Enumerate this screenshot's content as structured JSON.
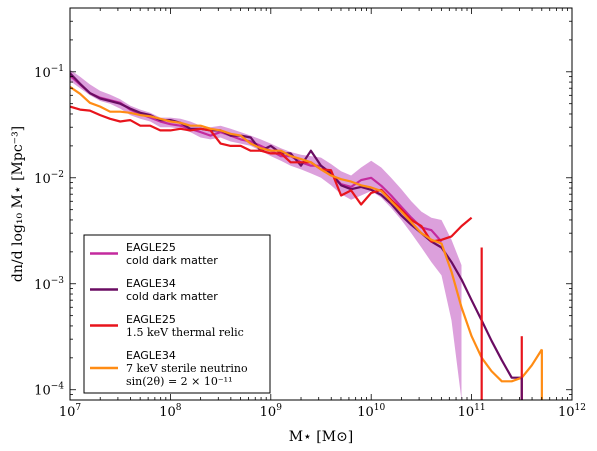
{
  "chart_data": {
    "type": "line",
    "xlabel": "M⋆ [M⊙]",
    "ylabel": "dn/d log₁₀ M⋆ [Mpc⁻³]",
    "xscale": "log",
    "yscale": "log",
    "xlim": [
      10000000.0,
      1000000000000.0
    ],
    "ylim": [
      8e-05,
      0.4
    ],
    "x_ticks": [
      {
        "value": 10000000.0,
        "base": "10",
        "exp": "7"
      },
      {
        "value": 100000000.0,
        "base": "10",
        "exp": "8"
      },
      {
        "value": 1000000000.0,
        "base": "10",
        "exp": "9"
      },
      {
        "value": 10000000000.0,
        "base": "10",
        "exp": "10"
      },
      {
        "value": 100000000000.0,
        "base": "10",
        "exp": "11"
      },
      {
        "value": 1000000000000.0,
        "base": "10",
        "exp": "12"
      }
    ],
    "y_ticks": [
      {
        "value": 0.0001,
        "base": "10",
        "exp": "−4"
      },
      {
        "value": 0.001,
        "base": "10",
        "exp": "−3"
      },
      {
        "value": 0.01,
        "base": "10",
        "exp": "−2"
      },
      {
        "value": 0.1,
        "base": "10",
        "exp": "−1"
      }
    ],
    "grid": false,
    "legend_position": "bottom-left",
    "band": {
      "series": "EAGLE25 cold dark matter",
      "color": "#dca0dc",
      "x": [
        10000000.0,
        12600000.0,
        15800000.0,
        20000000.0,
        25100000.0,
        31600000.0,
        39800000.0,
        50100000.0,
        63100000.0,
        79400000.0,
        100000000.0,
        126000000.0,
        158000000.0,
        200000000.0,
        251000000.0,
        316000000.0,
        398000000.0,
        501000000.0,
        631000000.0,
        794000000.0,
        1000000000.0,
        1260000000.0,
        1580000000.0,
        2000000000.0,
        2510000000.0,
        3160000000.0,
        3980000000.0,
        5010000000.0,
        6310000000.0,
        7940000000.0,
        10000000000.0,
        12600000000.0,
        15800000000.0,
        20000000000.0,
        25100000000.0,
        31600000000.0,
        39800000000.0,
        50100000000.0,
        63100000000.0,
        79400000000.0
      ],
      "low": [
        0.082,
        0.07,
        0.06,
        0.053,
        0.05,
        0.045,
        0.039,
        0.036,
        0.034,
        0.03,
        0.03,
        0.029,
        0.027,
        0.024,
        0.023,
        0.024,
        0.022,
        0.021,
        0.02,
        0.018,
        0.016,
        0.0145,
        0.013,
        0.012,
        0.011,
        0.01,
        0.0085,
        0.007,
        0.0062,
        0.0068,
        0.0075,
        0.0065,
        0.0052,
        0.004,
        0.003,
        0.0022,
        0.0016,
        0.0012,
        0.00045,
        8e-05
      ],
      "high": [
        0.105,
        0.09,
        0.076,
        0.066,
        0.061,
        0.055,
        0.048,
        0.044,
        0.041,
        0.037,
        0.037,
        0.036,
        0.034,
        0.031,
        0.03,
        0.031,
        0.029,
        0.027,
        0.025,
        0.023,
        0.021,
        0.019,
        0.0175,
        0.0165,
        0.016,
        0.0155,
        0.0135,
        0.0115,
        0.0105,
        0.0125,
        0.0145,
        0.0125,
        0.01,
        0.0078,
        0.006,
        0.0048,
        0.0042,
        0.004,
        0.0026,
        0.0015
      ]
    },
    "series": [
      {
        "color": "#c42a9e",
        "width": 2.2,
        "x": [
          10000000.0,
          15800000.0,
          20000000.0,
          31600000.0,
          39800000.0,
          50100000.0,
          63100000.0,
          79400000.0,
          100000000.0,
          126000000.0,
          158000000.0,
          200000000.0,
          251000000.0,
          316000000.0,
          398000000.0,
          501000000.0,
          631000000.0,
          794000000.0,
          1000000000.0,
          1260000000.0,
          1580000000.0,
          2000000000.0,
          2510000000.0,
          3160000000.0,
          3980000000.0,
          5010000000.0,
          6310000000.0,
          7940000000.0,
          10000000000.0,
          12600000000.0,
          15800000000.0,
          20000000000.0,
          25100000000.0,
          31600000000.0,
          39800000000.0,
          50100000000.0
        ],
        "y": [
          0.092,
          0.063,
          0.057,
          0.051,
          0.044,
          0.04,
          0.037,
          0.034,
          0.032,
          0.031,
          0.029,
          0.027,
          0.025,
          0.027,
          0.025,
          0.023,
          0.022,
          0.02,
          0.018,
          0.016,
          0.016,
          0.014,
          0.013,
          0.013,
          0.011,
          0.0087,
          0.0082,
          0.0095,
          0.01,
          0.0084,
          0.0068,
          0.0053,
          0.0042,
          0.0034,
          0.0032,
          0.0025
        ]
      },
      {
        "color": "#6a0c62",
        "width": 2.2,
        "x": [
          10000000.0,
          12600000.0,
          15800000.0,
          20000000.0,
          25100000.0,
          31600000.0,
          39800000.0,
          50100000.0,
          63100000.0,
          79400000.0,
          100000000.0,
          126000000.0,
          158000000.0,
          200000000.0,
          251000000.0,
          316000000.0,
          398000000.0,
          501000000.0,
          631000000.0,
          794000000.0,
          1000000000.0,
          1260000000.0,
          1580000000.0,
          2000000000.0,
          2510000000.0,
          3160000000.0,
          3980000000.0,
          5010000000.0,
          6310000000.0,
          7940000000.0,
          10000000000.0,
          12600000000.0,
          15800000000.0,
          20000000000.0,
          25100000000.0,
          31600000000.0,
          39800000000.0,
          50100000000.0,
          63100000000.0,
          79400000000.0,
          100000000000.0,
          126000000000.0,
          158000000000.0,
          200000000000.0,
          251000000000.0,
          316000000000.0
        ],
        "y": [
          0.097,
          0.077,
          0.063,
          0.056,
          0.053,
          0.05,
          0.045,
          0.041,
          0.039,
          0.035,
          0.035,
          0.033,
          0.029,
          0.029,
          0.028,
          0.028,
          0.025,
          0.025,
          0.024,
          0.018,
          0.02,
          0.017,
          0.017,
          0.013,
          0.018,
          0.013,
          0.011,
          0.0085,
          0.0078,
          0.0082,
          0.0077,
          0.0069,
          0.0057,
          0.0044,
          0.0036,
          0.003,
          0.0025,
          0.0022,
          0.0016,
          0.0011,
          0.0007,
          0.00045,
          0.00029,
          0.00019,
          0.00013,
          0.00013
        ]
      },
      {
        "color": "#e8141c",
        "width": 2.2,
        "x": [
          10000000.0,
          12600000.0,
          15800000.0,
          20000000.0,
          25100000.0,
          31600000.0,
          39800000.0,
          50100000.0,
          63100000.0,
          79400000.0,
          100000000.0,
          126000000.0,
          158000000.0,
          200000000.0,
          251000000.0,
          316000000.0,
          398000000.0,
          501000000.0,
          631000000.0,
          794000000.0,
          1000000000.0,
          1260000000.0,
          1580000000.0,
          2000000000.0,
          2510000000.0,
          3160000000.0,
          3980000000.0,
          5010000000.0,
          6310000000.0,
          7940000000.0,
          10000000000.0,
          12600000000.0,
          15800000000.0,
          20000000000.0,
          25100000000.0,
          31600000000.0,
          39800000000.0,
          50100000000.0,
          63100000000.0,
          79400000000.0,
          100000000000.0
        ],
        "y": [
          0.047,
          0.044,
          0.043,
          0.039,
          0.036,
          0.034,
          0.035,
          0.031,
          0.031,
          0.028,
          0.028,
          0.029,
          0.028,
          0.029,
          0.028,
          0.021,
          0.02,
          0.02,
          0.018,
          0.018,
          0.017,
          0.017,
          0.014,
          0.014,
          0.014,
          0.012,
          0.0118,
          0.0068,
          0.0076,
          0.0056,
          0.0072,
          0.0077,
          0.0062,
          0.005,
          0.004,
          0.0035,
          0.0025,
          0.0026,
          0.0028,
          0.0035,
          0.0042
        ]
      },
      {
        "color": "#ff8c14",
        "width": 2.2,
        "x": [
          10000000.0,
          12600000.0,
          15800000.0,
          20000000.0,
          25100000.0,
          31600000.0,
          39800000.0,
          50100000.0,
          63100000.0,
          79400000.0,
          100000000.0,
          126000000.0,
          158000000.0,
          200000000.0,
          251000000.0,
          316000000.0,
          398000000.0,
          501000000.0,
          631000000.0,
          794000000.0,
          1000000000.0,
          1260000000.0,
          1580000000.0,
          2000000000.0,
          2510000000.0,
          3160000000.0,
          3980000000.0,
          5010000000.0,
          6310000000.0,
          7940000000.0,
          10000000000.0,
          12600000000.0,
          15800000000.0,
          20000000000.0,
          25100000000.0,
          31600000000.0,
          39800000000.0,
          50100000000.0,
          63100000000.0,
          79400000000.0,
          100000000000.0,
          126000000000.0,
          158000000000.0,
          200000000000.0,
          251000000000.0,
          316000000000.0,
          398000000000.0,
          501000000000.0
        ],
        "y": [
          0.072,
          0.062,
          0.051,
          0.047,
          0.042,
          0.042,
          0.041,
          0.039,
          0.038,
          0.036,
          0.034,
          0.033,
          0.031,
          0.031,
          0.029,
          0.028,
          0.026,
          0.025,
          0.021,
          0.019,
          0.018,
          0.018,
          0.016,
          0.015,
          0.014,
          0.012,
          0.0105,
          0.0097,
          0.0092,
          0.0085,
          0.0081,
          0.0075,
          0.006,
          0.0048,
          0.0038,
          0.003,
          0.0026,
          0.0024,
          0.0013,
          0.0006,
          0.00032,
          0.0002,
          0.00015,
          0.00012,
          0.00012,
          0.00013,
          0.00017,
          0.00024
        ]
      }
    ],
    "spikes": [
      {
        "color": "#e8141c",
        "x": 126000000000.0,
        "y_top": 0.0022
      },
      {
        "color": "#e8141c",
        "x": 316000000000.0,
        "y_top": 0.00032
      },
      {
        "color": "#6a0c62",
        "x": 316000000000.0,
        "y_top": 0.00013
      },
      {
        "color": "#ff8c14",
        "x": 501000000000.0,
        "y_top": 0.00024
      }
    ],
    "legend": [
      {
        "color": "#c42a9e",
        "lines": [
          "EAGLE25",
          "cold dark matter"
        ],
        "serif": [
          false,
          false
        ]
      },
      {
        "color": "#6a0c62",
        "lines": [
          "EAGLE34",
          "cold dark matter"
        ],
        "serif": [
          false,
          false
        ]
      },
      {
        "color": "#e8141c",
        "lines": [
          "EAGLE25",
          "1.5 keV thermal relic"
        ],
        "serif": [
          false,
          true
        ]
      },
      {
        "color": "#ff8c14",
        "lines": [
          "EAGLE34",
          "7 keV sterile neutrino",
          "sin(2θ) = 2 × 10⁻¹¹"
        ],
        "serif": [
          false,
          true,
          true
        ]
      }
    ]
  }
}
